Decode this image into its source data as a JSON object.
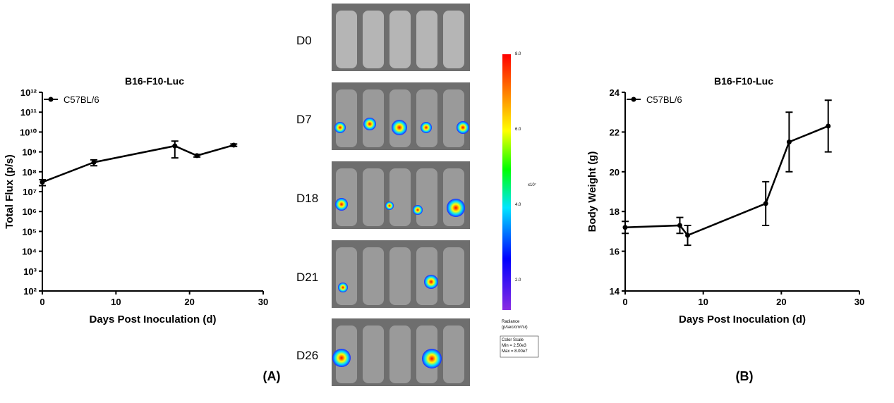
{
  "chart_data": [
    {
      "type": "line",
      "title": "B16-F10-Luc",
      "x_label": "Days Post Inoculation (d)",
      "y_label": "Total Flux (p/s)",
      "x": [
        0,
        7,
        18,
        21,
        26
      ],
      "series": [
        {
          "name": "C57BL/6",
          "color": "#000000",
          "values": [
            30000000,
            300000000,
            2000000000,
            650000000,
            2200000000
          ],
          "errors": [
            10000000,
            100000000,
            1500000000,
            100000000,
            300000000
          ]
        }
      ],
      "xlim": [
        0,
        30
      ],
      "xticks": [
        0,
        10,
        20,
        30
      ],
      "ylim": [
        100,
        1000000000000
      ],
      "log_y": true,
      "yticks": [
        {
          "value": 100,
          "label": "10²"
        },
        {
          "value": 1000,
          "label": "10³"
        },
        {
          "value": 10000,
          "label": "10⁴"
        },
        {
          "value": 100000,
          "label": "10⁵"
        },
        {
          "value": 1000000,
          "label": "10⁶"
        },
        {
          "value": 10000000,
          "label": "10⁷"
        },
        {
          "value": 100000000,
          "label": "10⁸"
        },
        {
          "value": 1000000000,
          "label": "10⁹"
        },
        {
          "value": 10000000000,
          "label": "10¹⁰"
        },
        {
          "value": 100000000000,
          "label": "10¹¹"
        },
        {
          "value": 1000000000000,
          "label": "10¹²"
        }
      ],
      "legend": "upper left"
    },
    {
      "type": "line",
      "title": "B16-F10-Luc",
      "x_label": "Days Post Inoculation (d)",
      "y_label": "Body Weight (g)",
      "x": [
        0,
        7,
        8,
        18,
        21,
        26
      ],
      "series": [
        {
          "name": "C57BL/6",
          "color": "#000000",
          "values": [
            17.2,
            17.3,
            16.8,
            18.4,
            21.5,
            22.3
          ],
          "errors": [
            0.3,
            0.4,
            0.5,
            1.1,
            1.5,
            1.3
          ]
        }
      ],
      "xlim": [
        0,
        30
      ],
      "xticks": [
        0,
        10,
        20,
        30
      ],
      "ylim": [
        14,
        24
      ],
      "log_y": false,
      "yticks": [
        14,
        16,
        18,
        20,
        22,
        24
      ],
      "legend": "upper left"
    }
  ],
  "imaging": {
    "days": [
      "D0",
      "D7",
      "D18",
      "D21",
      "D26"
    ],
    "colorbar": {
      "ticks": [
        "8.0",
        "6.0",
        "4.0",
        "2.0"
      ],
      "unit": "x10⁷",
      "legend": [
        "Radiance",
        "(p/sec/cm²/sr)",
        "Color Scale",
        "Min = 2.50e3",
        "Max = 8.00e7"
      ]
    }
  },
  "panel_labels": [
    "(A)",
    "(B)"
  ]
}
